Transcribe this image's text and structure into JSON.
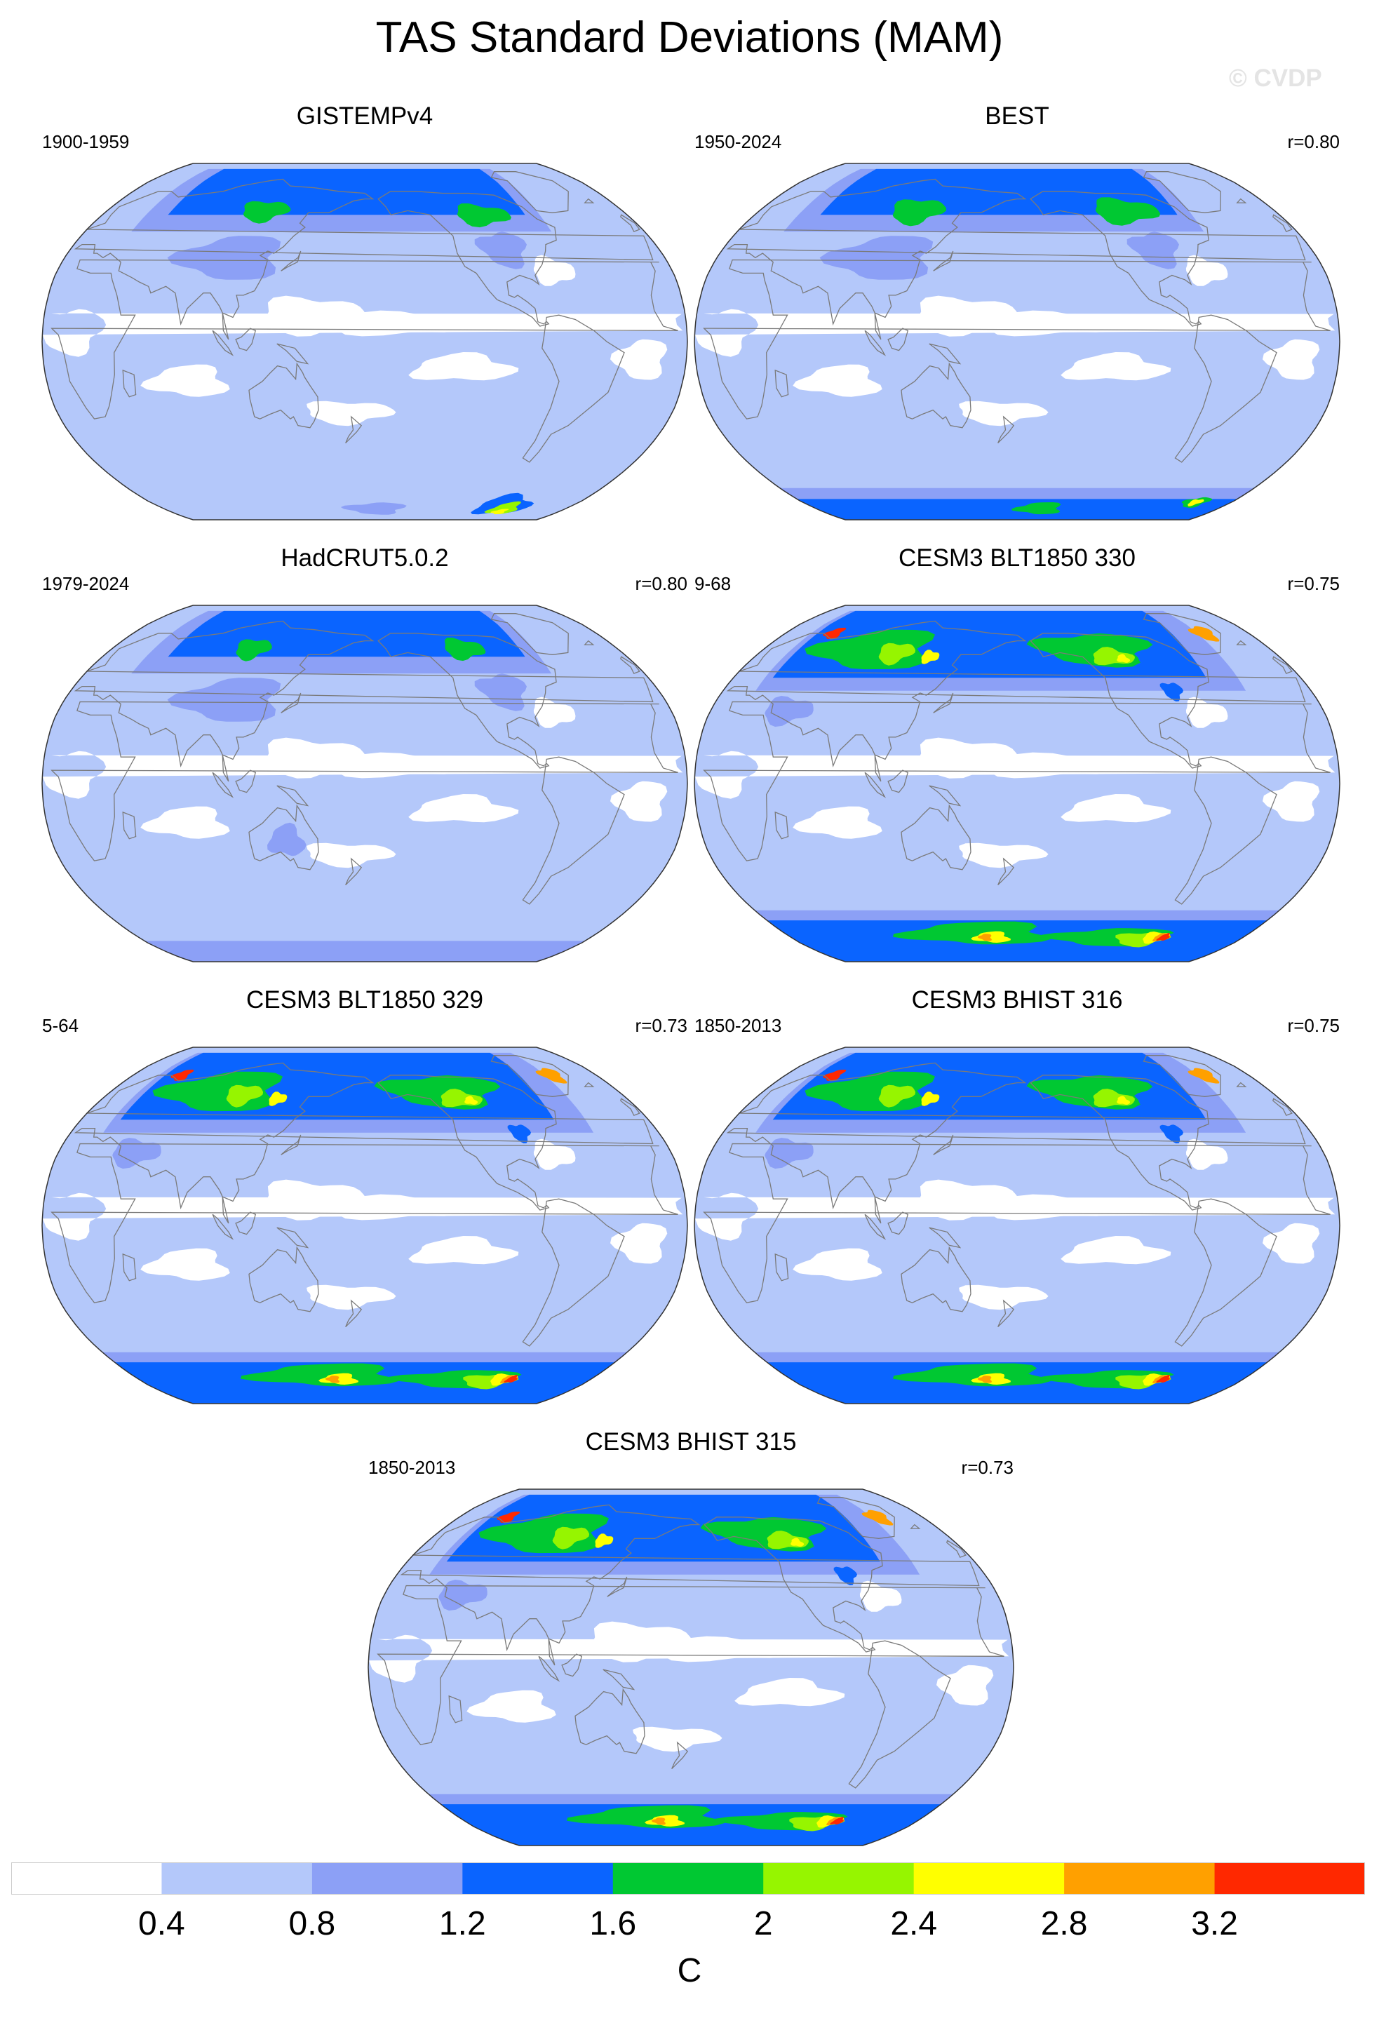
{
  "title": "TAS Standard Deviations (MAM)",
  "watermark": "© CVDP",
  "colors": {
    "levels": [
      "#ffffff",
      "#b4c8fa",
      "#8ca0f6",
      "#0a64ff",
      "#00c832",
      "#96f500",
      "#ffff00",
      "#ffa000",
      "#ff2800"
    ],
    "coastline": "#7a7a7a",
    "outline": "#333333"
  },
  "map_projection": "robinson",
  "central_longitude": 180,
  "panels": [
    {
      "title": "GISTEMPv4",
      "period": "1900-1959",
      "corr": ""
    },
    {
      "title": "BEST",
      "period": "1950-2024",
      "corr": "r=0.80"
    },
    {
      "title": "HadCRUT5.0.2",
      "period": "1979-2024",
      "corr": "r=0.80"
    },
    {
      "title": "CESM3 BLT1850 330",
      "period": "9-68",
      "corr": "r=0.75"
    },
    {
      "title": "CESM3 BLT1850 329",
      "period": "5-64",
      "corr": "r=0.73"
    },
    {
      "title": "CESM3 BHIST 316",
      "period": "1850-2013",
      "corr": "r=0.75"
    },
    {
      "title": "CESM3 BHIST 315",
      "period": "1850-2013",
      "corr": "r=0.73"
    }
  ],
  "colorbar": {
    "ticks": [
      "0.4",
      "0.8",
      "1.2",
      "1.6",
      "2",
      "2.4",
      "2.8",
      "3.2"
    ],
    "unit": "C"
  }
}
